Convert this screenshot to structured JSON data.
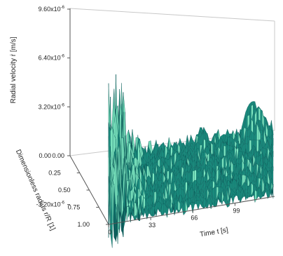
{
  "chart_data": {
    "type": "surface-3d",
    "title": "",
    "z_axis": {
      "label": "Radial velocity ṙ [m/s]",
      "ticks": [
        {
          "mant": "-3.20x10",
          "exp": "-6",
          "value": -3.2e-06
        },
        {
          "mant": "0.00",
          "exp": "",
          "value": 0
        },
        {
          "mant": "3.20x10",
          "exp": "-6",
          "value": 3.2e-06
        },
        {
          "mant": "6.40x10",
          "exp": "-6",
          "value": 6.4e-06
        },
        {
          "mant": "9.60x10",
          "exp": "-6",
          "value": 9.6e-06
        }
      ]
    },
    "r_axis": {
      "label": "Dimensionless radius r/R [1]",
      "ticks": [
        "0.00",
        "0.25",
        "0.50",
        "0.75",
        "1.00"
      ],
      "range": [
        0,
        1
      ]
    },
    "t_axis": {
      "label": "Time t [s]",
      "ticks": [
        "0",
        "33",
        "66",
        "99"
      ],
      "range": [
        0,
        130
      ]
    },
    "colors": {
      "surface": "#1a8c7e",
      "surface_dark": "#0d5c5a",
      "highlight": "#7fe9c2",
      "grid": "#c8c8c8",
      "axis": "#555555"
    },
    "description_of_data": []
  }
}
